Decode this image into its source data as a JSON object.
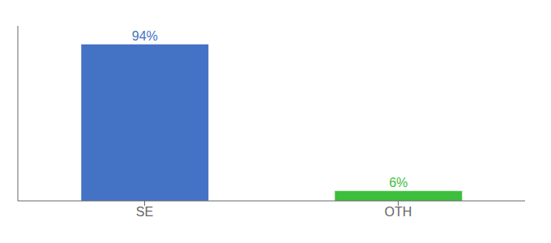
{
  "chart_data": {
    "type": "bar",
    "categories": [
      "SE",
      "OTH"
    ],
    "values": [
      94,
      6
    ],
    "colors": [
      "#4472c4",
      "#3dbf3d"
    ],
    "ylim": [
      0,
      105
    ],
    "data_labels": true,
    "value_labels": [
      "94%",
      "6%"
    ],
    "tick_labels": "x"
  }
}
